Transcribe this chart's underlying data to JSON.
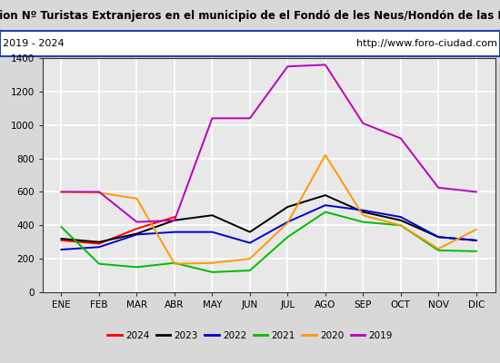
{
  "title": "olucion Nº Turistas Extranjeros en el municipio de el Fondó de les Neus/Hondón de las Niev",
  "subtitle_left": "2019 - 2024",
  "subtitle_right": "http://www.foro-ciudad.com",
  "months": [
    "ENE",
    "FEB",
    "MAR",
    "ABR",
    "MAY",
    "JUN",
    "JUL",
    "AGO",
    "SEP",
    "OCT",
    "NOV",
    "DIC"
  ],
  "ylim": [
    0,
    1400
  ],
  "yticks": [
    0,
    200,
    400,
    600,
    800,
    1000,
    1200,
    1400
  ],
  "series": {
    "2024": {
      "color": "#ff0000",
      "values": [
        310,
        290,
        380,
        450,
        null,
        null,
        null,
        null,
        null,
        null,
        null,
        null
      ]
    },
    "2023": {
      "color": "#000000",
      "values": [
        320,
        300,
        350,
        430,
        460,
        360,
        510,
        580,
        480,
        430,
        330,
        310
      ]
    },
    "2022": {
      "color": "#0000cc",
      "values": [
        255,
        270,
        345,
        360,
        360,
        295,
        420,
        520,
        490,
        450,
        330,
        310
      ]
    },
    "2021": {
      "color": "#00bb00",
      "values": [
        390,
        170,
        150,
        175,
        120,
        130,
        330,
        480,
        420,
        400,
        250,
        245
      ]
    },
    "2020": {
      "color": "#ff9900",
      "values": [
        600,
        595,
        560,
        170,
        175,
        200,
        415,
        820,
        460,
        400,
        260,
        375
      ]
    },
    "2019": {
      "color": "#bb00bb",
      "values": [
        600,
        600,
        420,
        430,
        1040,
        1040,
        1350,
        1360,
        1010,
        920,
        625,
        600
      ]
    }
  },
  "legend_order": [
    "2024",
    "2023",
    "2022",
    "2021",
    "2020",
    "2019"
  ],
  "outer_bg": "#d8d8d8",
  "plot_bg_color": "#e8e8e8",
  "grid_color": "#ffffff",
  "subtitle_border_color": "#2244aa",
  "title_fontsize": 8.5,
  "subtitle_fontsize": 8,
  "tick_fontsize": 7.5,
  "legend_fontsize": 7.5
}
